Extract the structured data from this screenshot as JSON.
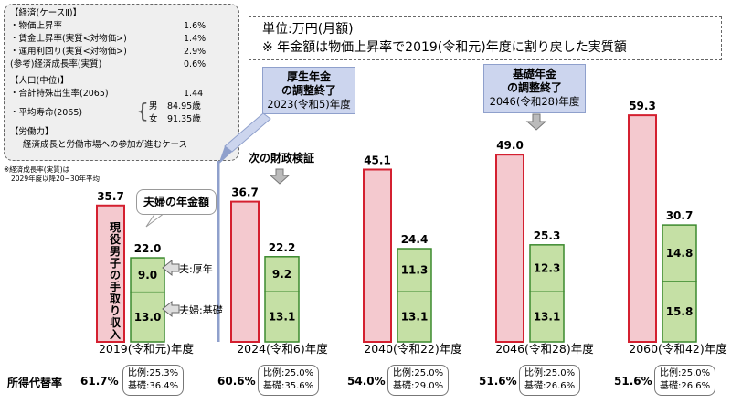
{
  "assumptions": {
    "economy_title": "【経済(ケースⅡ)】",
    "economy": [
      {
        "label": "・物価上昇率",
        "value": "1.6%"
      },
      {
        "label": "・賃金上昇率(実質<対物価>)",
        "value": "1.4%"
      },
      {
        "label": "・運用利回り(実質<対物価>)",
        "value": "2.9%"
      },
      {
        "label": "(参考)経済成長率(実質)",
        "value": "0.6%"
      }
    ],
    "population_title": "【人口(中位)】",
    "fertility_label": "・合計特殊出生率(2065)",
    "fertility_value": "1.44",
    "life_label": "・平均寿命(2065)",
    "male_label": "男",
    "male_value": "84.95歳",
    "female_label": "女",
    "female_value": "91.35歳",
    "labor_title": "【労働力】",
    "labor_text": "経済成長と労働市場への参加が進むケース",
    "footnote1": "※経済成長率(実質)は",
    "footnote2": "2029年度以降20~30年平均"
  },
  "unit_box": {
    "line1": "単位:万円(月額)",
    "line2": "※  年金額は物価上昇率で2019(令和元)年度に割り戻した実質額"
  },
  "callouts": {
    "kosei_title1": "厚生年金",
    "kosei_title2": "の調整終了",
    "kosei_year": "2023(令和5)年度",
    "kiso_title1": "基礎年金",
    "kiso_title2": "の調整終了",
    "kiso_year": "2046(令和28)年度",
    "next_review": "次の財政検証"
  },
  "couple_label": "夫婦の年金額",
  "worker_label": "現役男子の手取り収入",
  "husband_label": "夫:厚年",
  "couple_basic_label": "夫婦:基礎",
  "repl_label": "所得代替率",
  "colors": {
    "wage_fill": "#f4c9cf",
    "wage_stroke": "#d42030",
    "pension_fill": "#c5e0a5",
    "pension_stroke": "#3c8a2e",
    "callout": "#ccd5ee"
  },
  "chart_data": {
    "type": "bar",
    "title": "",
    "ylabel": "万円(月額)",
    "ylim": [
      0,
      60
    ],
    "categories": [
      "2019(令和元)年度",
      "2024(令和6)年度",
      "2040(令和22)年度",
      "2046(令和28)年度",
      "2060(令和42)年度"
    ],
    "series": [
      {
        "name": "現役男子の手取り収入",
        "values": [
          35.7,
          36.7,
          45.1,
          49.0,
          59.3
        ]
      },
      {
        "name": "夫:厚年",
        "values": [
          9.0,
          9.2,
          11.3,
          12.3,
          14.8
        ]
      },
      {
        "name": "夫婦:基礎",
        "values": [
          13.0,
          13.1,
          13.1,
          13.1,
          15.8
        ]
      },
      {
        "name": "夫婦の年金額(合計)",
        "values": [
          22.0,
          22.2,
          24.4,
          25.3,
          30.7
        ]
      }
    ],
    "replacement_rate": [
      "61.7%",
      "60.6%",
      "54.0%",
      "51.6%",
      "51.6%"
    ],
    "proportional_rate": [
      "比例:25.3%",
      "比例:25.0%",
      "比例:25.0%",
      "比例:25.0%",
      "比例:25.0%"
    ],
    "basic_rate": [
      "基礎:36.4%",
      "基礎:35.6%",
      "基礎:29.0%",
      "基礎:26.6%",
      "基礎:26.6%"
    ]
  }
}
